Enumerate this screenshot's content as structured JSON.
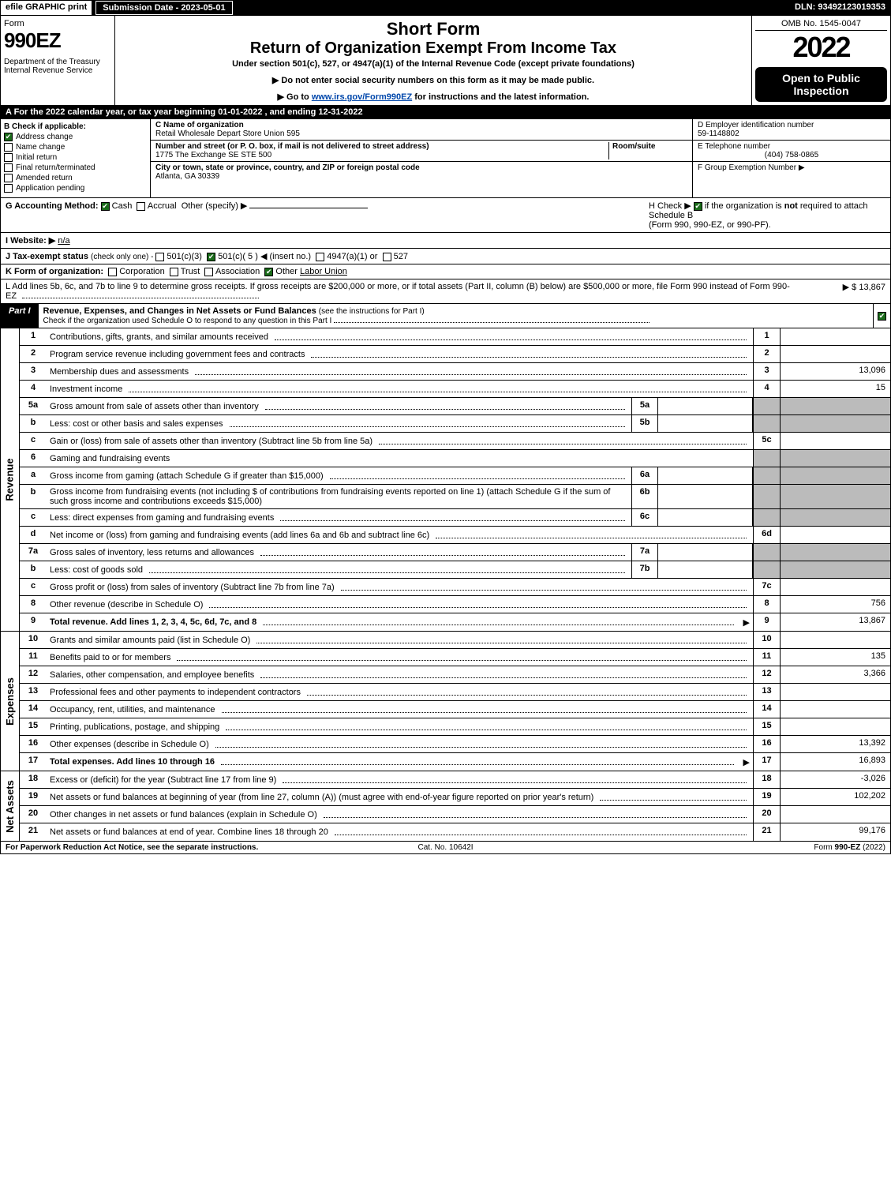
{
  "topbar": {
    "efile": "efile GRAPHIC print",
    "subdate": "Submission Date - 2023-05-01",
    "dln": "DLN: 93492123019353"
  },
  "header": {
    "form": "Form",
    "num": "990EZ",
    "dept": "Department of the Treasury\nInternal Revenue Service",
    "short": "Short Form",
    "title": "Return of Organization Exempt From Income Tax",
    "sub": "Under section 501(c), 527, or 4947(a)(1) of the Internal Revenue Code (except private foundations)",
    "note1": "▶ Do not enter social security numbers on this form as it may be made public.",
    "note2_pre": "▶ Go to ",
    "note2_link": "www.irs.gov/Form990EZ",
    "note2_post": " for instructions and the latest information.",
    "omb": "OMB No. 1545-0047",
    "year": "2022",
    "open": "Open to Public Inspection"
  },
  "rowA": "A  For the 2022 calendar year, or tax year beginning 01-01-2022 , and ending 12-31-2022",
  "B": {
    "hdr": "B  Check if applicable:",
    "items": [
      {
        "label": "Address change",
        "checked": true
      },
      {
        "label": "Name change",
        "checked": false
      },
      {
        "label": "Initial return",
        "checked": false
      },
      {
        "label": "Final return/terminated",
        "checked": false
      },
      {
        "label": "Amended return",
        "checked": false
      },
      {
        "label": "Application pending",
        "checked": false
      }
    ]
  },
  "C": {
    "name_lbl": "C Name of organization",
    "name": "Retail Wholesale Depart Store Union 595",
    "addr_lbl": "Number and street (or P. O. box, if mail is not delivered to street address)",
    "room_lbl": "Room/suite",
    "addr": "1775 The Exchange SE STE 500",
    "city_lbl": "City or town, state or province, country, and ZIP or foreign postal code",
    "city": "Atlanta, GA  30339"
  },
  "D": {
    "ein_lbl": "D Employer identification number",
    "ein": "59-1148802",
    "tel_lbl": "E Telephone number",
    "tel": "(404) 758-0865",
    "grp_lbl": "F Group Exemption Number  ▶"
  },
  "G": {
    "lbl": "G Accounting Method:",
    "cash": "Cash",
    "accrual": "Accrual",
    "other": "Other (specify) ▶"
  },
  "H": {
    "text_pre": "H  Check ▶ ",
    "text_post": " if the organization is ",
    "not": "not",
    "text2": " required to attach Schedule B",
    "text3": "(Form 990, 990-EZ, or 990-PF)."
  },
  "I": {
    "lbl": "I Website: ▶",
    "val": "n/a"
  },
  "J": {
    "lbl": "J Tax-exempt status ",
    "sub": "(check only one) - ",
    "o1": "501(c)(3)",
    "o2": "501(c)( 5 ) ◀ (insert no.)",
    "o3": "4947(a)(1) or",
    "o4": "527"
  },
  "K": {
    "lbl": "K Form of organization:",
    "o1": "Corporation",
    "o2": "Trust",
    "o3": "Association",
    "o4": "Other",
    "o4v": "Labor Union"
  },
  "L": {
    "text": "L Add lines 5b, 6c, and 7b to line 9 to determine gross receipts. If gross receipts are $200,000 or more, or if total assets (Part II, column (B) below) are $500,000 or more, file Form 990 instead of Form 990-EZ",
    "val": "▶ $ 13,867"
  },
  "partI": {
    "tag": "Part I",
    "title": "Revenue, Expenses, and Changes in Net Assets or Fund Balances ",
    "title_sub": "(see the instructions for Part I)",
    "check": "Check if the organization used Schedule O to respond to any question in this Part I"
  },
  "sections": {
    "revenue": "Revenue",
    "expenses": "Expenses",
    "netassets": "Net Assets"
  },
  "lines": {
    "l1": {
      "n": "1",
      "d": "Contributions, gifts, grants, and similar amounts received",
      "r": "1",
      "v": ""
    },
    "l2": {
      "n": "2",
      "d": "Program service revenue including government fees and contracts",
      "r": "2",
      "v": ""
    },
    "l3": {
      "n": "3",
      "d": "Membership dues and assessments",
      "r": "3",
      "v": "13,096"
    },
    "l4": {
      "n": "4",
      "d": "Investment income",
      "r": "4",
      "v": "15"
    },
    "l5a": {
      "n": "5a",
      "d": "Gross amount from sale of assets other than inventory",
      "s": "5a"
    },
    "l5b": {
      "n": "b",
      "d": "Less: cost or other basis and sales expenses",
      "s": "5b"
    },
    "l5c": {
      "n": "c",
      "d": "Gain or (loss) from sale of assets other than inventory (Subtract line 5b from line 5a)",
      "r": "5c",
      "v": ""
    },
    "l6": {
      "n": "6",
      "d": "Gaming and fundraising events"
    },
    "l6a": {
      "n": "a",
      "d": "Gross income from gaming (attach Schedule G if greater than $15,000)",
      "s": "6a"
    },
    "l6b": {
      "n": "b",
      "d": "Gross income from fundraising events (not including $                    of contributions from fundraising events reported on line 1) (attach Schedule G if the sum of such gross income and contributions exceeds $15,000)",
      "s": "6b"
    },
    "l6c": {
      "n": "c",
      "d": "Less: direct expenses from gaming and fundraising events",
      "s": "6c"
    },
    "l6d": {
      "n": "d",
      "d": "Net income or (loss) from gaming and fundraising events (add lines 6a and 6b and subtract line 6c)",
      "r": "6d",
      "v": ""
    },
    "l7a": {
      "n": "7a",
      "d": "Gross sales of inventory, less returns and allowances",
      "s": "7a"
    },
    "l7b": {
      "n": "b",
      "d": "Less: cost of goods sold",
      "s": "7b"
    },
    "l7c": {
      "n": "c",
      "d": "Gross profit or (loss) from sales of inventory (Subtract line 7b from line 7a)",
      "r": "7c",
      "v": ""
    },
    "l8": {
      "n": "8",
      "d": "Other revenue (describe in Schedule O)",
      "r": "8",
      "v": "756"
    },
    "l9": {
      "n": "9",
      "d": "Total revenue. Add lines 1, 2, 3, 4, 5c, 6d, 7c, and 8",
      "r": "9",
      "v": "13,867",
      "bold": true,
      "arrow": true
    },
    "l10": {
      "n": "10",
      "d": "Grants and similar amounts paid (list in Schedule O)",
      "r": "10",
      "v": ""
    },
    "l11": {
      "n": "11",
      "d": "Benefits paid to or for members",
      "r": "11",
      "v": "135"
    },
    "l12": {
      "n": "12",
      "d": "Salaries, other compensation, and employee benefits",
      "r": "12",
      "v": "3,366"
    },
    "l13": {
      "n": "13",
      "d": "Professional fees and other payments to independent contractors",
      "r": "13",
      "v": ""
    },
    "l14": {
      "n": "14",
      "d": "Occupancy, rent, utilities, and maintenance",
      "r": "14",
      "v": ""
    },
    "l15": {
      "n": "15",
      "d": "Printing, publications, postage, and shipping",
      "r": "15",
      "v": ""
    },
    "l16": {
      "n": "16",
      "d": "Other expenses (describe in Schedule O)",
      "r": "16",
      "v": "13,392"
    },
    "l17": {
      "n": "17",
      "d": "Total expenses. Add lines 10 through 16",
      "r": "17",
      "v": "16,893",
      "bold": true,
      "arrow": true
    },
    "l18": {
      "n": "18",
      "d": "Excess or (deficit) for the year (Subtract line 17 from line 9)",
      "r": "18",
      "v": "-3,026"
    },
    "l19": {
      "n": "19",
      "d": "Net assets or fund balances at beginning of year (from line 27, column (A)) (must agree with end-of-year figure reported on prior year's return)",
      "r": "19",
      "v": "102,202"
    },
    "l20": {
      "n": "20",
      "d": "Other changes in net assets or fund balances (explain in Schedule O)",
      "r": "20",
      "v": ""
    },
    "l21": {
      "n": "21",
      "d": "Net assets or fund balances at end of year. Combine lines 18 through 20",
      "r": "21",
      "v": "99,176"
    }
  },
  "footer": {
    "l": "For Paperwork Reduction Act Notice, see the separate instructions.",
    "m": "Cat. No. 10642I",
    "r_pre": "Form ",
    "r_bold": "990-EZ",
    "r_post": " (2022)"
  }
}
